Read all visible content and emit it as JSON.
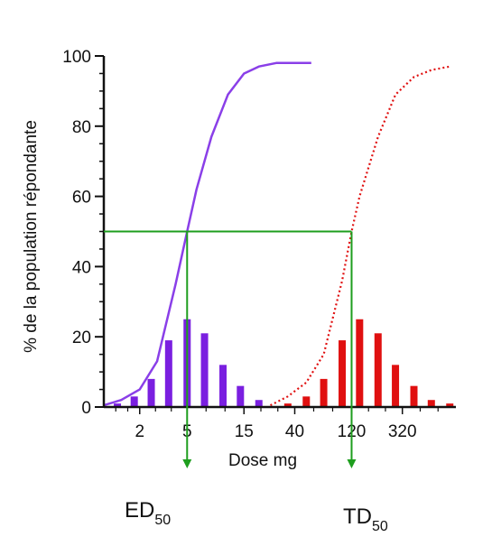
{
  "chart_data": {
    "type": "bar",
    "xlabel": "Dose mg",
    "ylabel": "% de la population répondante",
    "ylim": [
      0,
      100
    ],
    "y_ticks": [
      0,
      20,
      40,
      60,
      80,
      100
    ],
    "x_tick_labels": [
      "2",
      "5",
      "15",
      "40",
      "120",
      "320"
    ],
    "x_scale": "log",
    "grid": false,
    "series": [
      {
        "type": "bar",
        "color": "#7a1fe0",
        "x": [
          1.3,
          1.8,
          2.5,
          3.5,
          5,
          7,
          10,
          14,
          20
        ],
        "values": [
          1,
          3,
          8,
          19,
          25,
          21,
          12,
          6,
          2
        ]
      },
      {
        "type": "line",
        "style": "solid",
        "color": "#8a3fe8",
        "x": [
          1,
          1.4,
          2,
          2.8,
          4,
          5,
          6,
          8,
          11,
          15,
          20,
          28,
          40,
          55
        ],
        "values": [
          0.5,
          2,
          5,
          13,
          35,
          50,
          62,
          77,
          89,
          95,
          97,
          98,
          98,
          98
        ]
      },
      {
        "type": "bar",
        "color": "#e01010",
        "x": [
          35,
          50,
          70,
          100,
          140,
          200,
          280,
          400,
          560,
          800
        ],
        "values": [
          1,
          3,
          8,
          19,
          25,
          21,
          12,
          6,
          2,
          1
        ]
      },
      {
        "type": "line",
        "style": "dotted",
        "color": "#e01010",
        "x": [
          25,
          35,
          50,
          70,
          100,
          120,
          140,
          200,
          280,
          400,
          560,
          800
        ],
        "values": [
          0.5,
          3,
          7,
          15,
          36,
          50,
          60,
          77,
          89,
          94,
          96,
          97
        ]
      }
    ],
    "annotations": {
      "ed50": {
        "main": "ED",
        "sub": "50",
        "dose": 5,
        "percent": 50,
        "color": "#1e9e1e"
      },
      "td50": {
        "main": "TD",
        "sub": "50",
        "dose": 120,
        "percent": 50,
        "color": "#1e9e1e"
      }
    }
  }
}
